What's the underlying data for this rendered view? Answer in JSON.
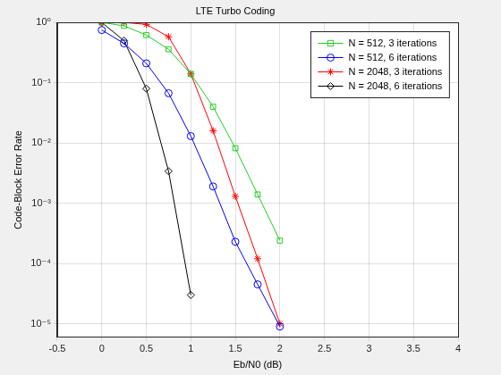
{
  "chart_data": {
    "type": "line",
    "title": "LTE Turbo Coding",
    "x_label": "Eb/N0 (dB)",
    "y_label": "Code-Block Error Rate",
    "x": [
      0,
      0.25,
      0.5,
      0.75,
      1,
      1.25,
      1.5,
      1.75,
      2
    ],
    "series": [
      {
        "name": "N = 512, 3 iterations",
        "color": "#22cc22",
        "marker": "square",
        "line_style": "solid",
        "values": [
          1.0,
          0.88,
          0.62,
          0.36,
          0.14,
          0.04,
          0.0082,
          0.0014,
          0.00024
        ]
      },
      {
        "name": "N = 512, 6 iterations",
        "color": "#0000ff",
        "marker": "circle",
        "line_style": "solid",
        "values": [
          0.75,
          0.45,
          0.21,
          0.067,
          0.013,
          0.0019,
          0.00023,
          4.5e-05,
          9e-06
        ]
      },
      {
        "name": "N = 2048, 3 iterations",
        "color": "#ff0000",
        "marker": "asterisk",
        "line_style": "solid",
        "values": [
          1.0,
          1.0,
          0.93,
          0.58,
          0.14,
          0.016,
          0.0013,
          0.00012,
          1e-05
        ]
      },
      {
        "name": "N = 2048, 6 iterations",
        "color": "#000000",
        "marker": "diamond",
        "line_style": "solid",
        "values": [
          1.0,
          0.5,
          0.08,
          0.0034,
          3e-05,
          null,
          null,
          null,
          null
        ]
      }
    ],
    "xlim": [
      -0.5,
      4
    ],
    "xticks": [
      -0.5,
      0,
      0.5,
      1,
      1.5,
      2,
      2.5,
      3,
      3.5,
      4
    ],
    "ylim": [
      6e-06,
      1
    ],
    "yticks": [
      {
        "value": 1e-05,
        "label": "10⁻⁵"
      },
      {
        "value": 0.0001,
        "label": "10⁻⁴"
      },
      {
        "value": 0.001,
        "label": "10⁻³"
      },
      {
        "value": 0.01,
        "label": "10⁻²"
      },
      {
        "value": 0.1,
        "label": "10⁻¹"
      },
      {
        "value": 1,
        "label": "10⁰"
      }
    ],
    "log": "y",
    "grid": true,
    "legend": "northeast"
  }
}
